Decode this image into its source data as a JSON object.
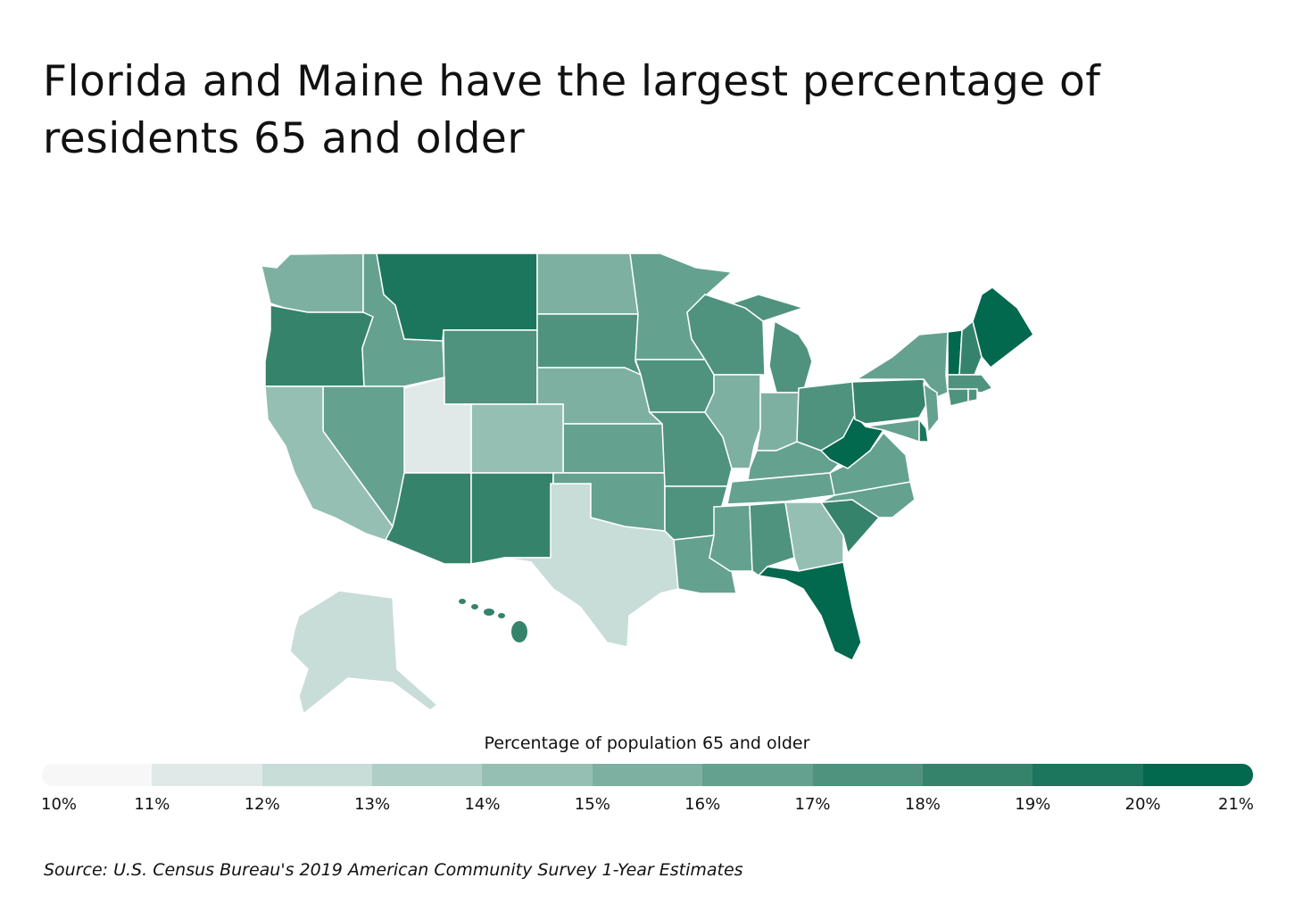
{
  "title": "Florida and Maine have the largest percentage of residents 65 and older",
  "source": "Source: U.S. Census Bureau's 2019 American Community Survey 1-Year Estimates",
  "legend": {
    "title": "Percentage of population 65 and older",
    "ticks": [
      "10%",
      "11%",
      "12%",
      "13%",
      "14%",
      "15%",
      "16%",
      "17%",
      "18%",
      "19%",
      "20%",
      "21%"
    ],
    "colors": [
      "#f7f7f7",
      "#e0e8e8",
      "#c8ddd7",
      "#afcfc6",
      "#96bfb3",
      "#7eb0a1",
      "#65a18f",
      "#4f937e",
      "#36836c",
      "#1b765d",
      "#02684e"
    ],
    "min": 10,
    "max": 21,
    "step": 1
  },
  "chart_data": {
    "type": "choropleth",
    "title": "Florida and Maine have the largest percentage of residents 65 and older",
    "legend_title": "Percentage of population 65 and older",
    "unit": "%",
    "values": {
      "WA": 15.9,
      "OR": 18.2,
      "CA": 14.8,
      "NV": 16.2,
      "ID": 16.3,
      "MT": 19.4,
      "WY": 17.1,
      "UT": 11.4,
      "CO": 14.6,
      "AZ": 18.0,
      "NM": 18.0,
      "ND": 15.9,
      "SD": 17.1,
      "NE": 15.9,
      "KS": 16.3,
      "OK": 16.1,
      "TX": 12.9,
      "MN": 16.3,
      "IA": 17.5,
      "MO": 17.2,
      "AR": 17.4,
      "LA": 16.0,
      "WI": 17.5,
      "IL": 15.9,
      "MI": 17.7,
      "IN": 15.9,
      "OH": 17.5,
      "KY": 16.9,
      "TN": 16.7,
      "MS": 16.4,
      "AL": 17.3,
      "GA": 14.3,
      "FL": 20.9,
      "SC": 18.2,
      "NC": 16.7,
      "VA": 16.0,
      "WV": 20.5,
      "PA": 18.7,
      "NY": 16.9,
      "MD": 16.1,
      "DE": 19.4,
      "NJ": 16.6,
      "VT": 20.0,
      "NH": 18.6,
      "ME": 21.2,
      "MA": 17.0,
      "CT": 17.6,
      "RI": 17.7,
      "AK": 12.4,
      "HI": 18.4
    }
  }
}
